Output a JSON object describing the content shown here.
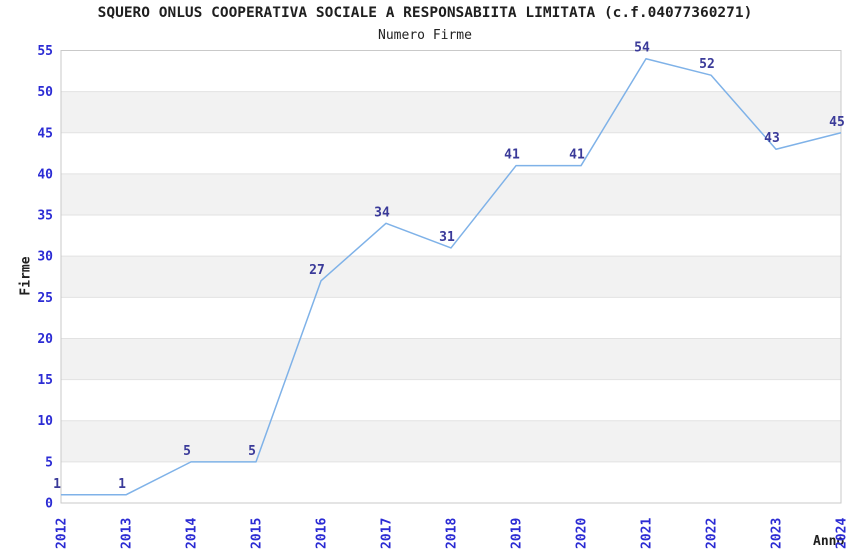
{
  "chart_data": {
    "type": "line",
    "title": "SQUERO ONLUS COOPERATIVA SOCIALE A RESPONSABIITA LIMITATA (c.f.04077360271)",
    "subtitle": "Numero Firme",
    "xlabel": "Anno",
    "ylabel": "Firme",
    "categories": [
      "2012",
      "2013",
      "2014",
      "2015",
      "2016",
      "2017",
      "2018",
      "2019",
      "2020",
      "2021",
      "2022",
      "2023",
      "2024"
    ],
    "values": [
      1,
      1,
      5,
      5,
      27,
      34,
      31,
      41,
      41,
      54,
      52,
      43,
      45
    ],
    "ylim": [
      0,
      55
    ],
    "ytick_step": 5,
    "grid": true,
    "legend": false,
    "point_labels_visible": true,
    "colors": {
      "line": "#7fb2e8",
      "tick_label": "#2b2bd4",
      "point_label": "#3a3a99",
      "band_fill": "#f2f2f2",
      "grid_line": "#e2e2e2",
      "plot_border": "#c9c9c9",
      "background": "#ffffff"
    }
  }
}
